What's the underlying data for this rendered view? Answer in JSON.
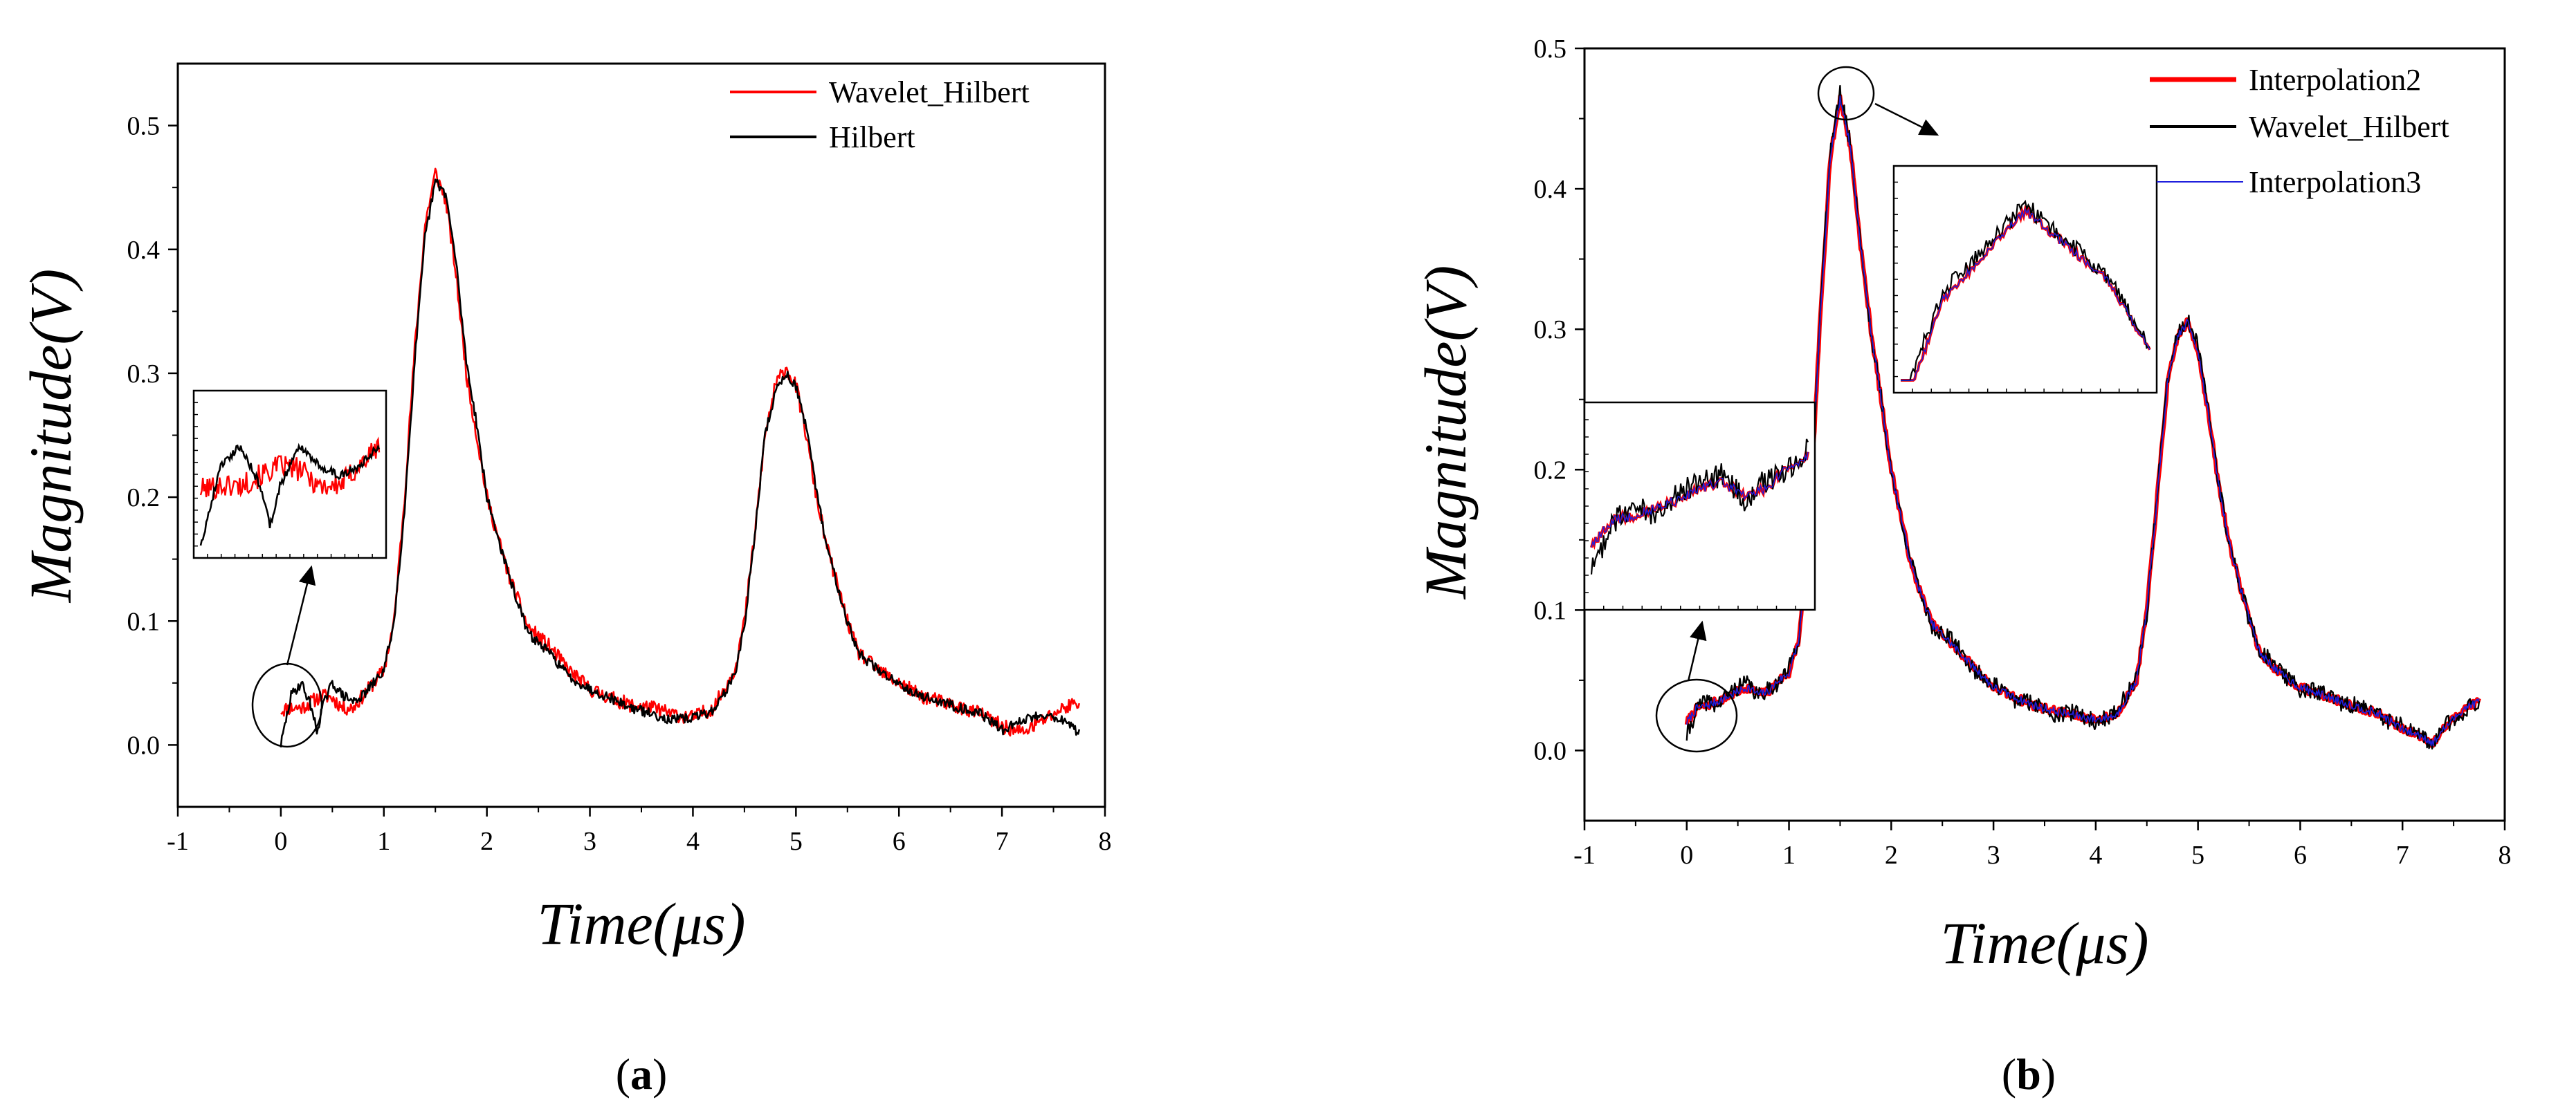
{
  "figure": {
    "panels": [
      {
        "label": "a",
        "xlabel": "Time(μs)",
        "ylabel": "Magnitude(V)",
        "xlim": [
          -1,
          8
        ],
        "ylim": [
          -0.05,
          0.55
        ],
        "xticks": [
          -1,
          0,
          1,
          2,
          3,
          4,
          5,
          6,
          7,
          8
        ],
        "yticks": [
          0.0,
          0.1,
          0.2,
          0.3,
          0.4,
          0.5
        ],
        "legend": [
          "Wavelet_Hilbert",
          "Hilbert"
        ]
      },
      {
        "label": "b",
        "xlabel": "Time(μs)",
        "ylabel": "Magnitude(V)",
        "xlim": [
          -1,
          8
        ],
        "ylim": [
          -0.05,
          0.5
        ],
        "xticks": [
          -1,
          0,
          1,
          2,
          3,
          4,
          5,
          6,
          7,
          8
        ],
        "yticks": [
          0.0,
          0.1,
          0.2,
          0.3,
          0.4,
          0.5
        ],
        "legend": [
          "Interpolation2",
          "Wavelet_Hilbert",
          "Interpolation3"
        ]
      }
    ]
  },
  "colors": {
    "red": "#ff0000",
    "black": "#000000",
    "blue": "#1f1fdd"
  },
  "chart_data": [
    {
      "type": "line",
      "panel": "a",
      "title": "",
      "xlabel": "Time(μs)",
      "ylabel": "Magnitude(V)",
      "xlim": [
        -1,
        8
      ],
      "ylim": [
        -0.05,
        0.55
      ],
      "grid": false,
      "legend_position": "top-right",
      "series": [
        {
          "name": "Wavelet_Hilbert",
          "color": "#ff0000",
          "x": [
            0.0,
            0.1,
            0.2,
            0.3,
            0.4,
            0.5,
            0.6,
            0.7,
            0.8,
            0.9,
            1.0,
            1.1,
            1.2,
            1.3,
            1.4,
            1.5,
            1.6,
            1.7,
            1.8,
            1.9,
            2.0,
            2.2,
            2.4,
            2.6,
            2.8,
            3.0,
            3.2,
            3.4,
            3.6,
            3.8,
            4.0,
            4.2,
            4.4,
            4.5,
            4.6,
            4.7,
            4.8,
            4.9,
            5.0,
            5.1,
            5.2,
            5.3,
            5.4,
            5.5,
            5.6,
            5.8,
            6.0,
            6.2,
            6.4,
            6.6,
            6.8,
            7.0,
            7.2,
            7.4,
            7.6,
            7.75
          ],
          "y": [
            0.028,
            0.03,
            0.03,
            0.035,
            0.04,
            0.038,
            0.03,
            0.03,
            0.04,
            0.05,
            0.06,
            0.1,
            0.2,
            0.32,
            0.42,
            0.462,
            0.44,
            0.38,
            0.3,
            0.25,
            0.2,
            0.14,
            0.095,
            0.08,
            0.06,
            0.045,
            0.038,
            0.032,
            0.03,
            0.025,
            0.022,
            0.03,
            0.06,
            0.1,
            0.17,
            0.25,
            0.29,
            0.305,
            0.29,
            0.25,
            0.2,
            0.16,
            0.13,
            0.1,
            0.075,
            0.06,
            0.05,
            0.04,
            0.035,
            0.03,
            0.025,
            0.015,
            0.01,
            0.02,
            0.03,
            0.035
          ]
        },
        {
          "name": "Hilbert",
          "color": "#000000",
          "x": [
            0.0,
            0.05,
            0.1,
            0.2,
            0.3,
            0.35,
            0.4,
            0.5,
            0.6,
            0.7,
            0.8,
            0.9,
            1.0,
            1.1,
            1.2,
            1.3,
            1.4,
            1.5,
            1.6,
            1.7,
            1.8,
            1.9,
            2.0,
            2.2,
            2.4,
            2.6,
            2.8,
            3.0,
            3.2,
            3.4,
            3.6,
            3.8,
            4.0,
            4.2,
            4.4,
            4.5,
            4.6,
            4.7,
            4.8,
            4.9,
            5.0,
            5.1,
            5.2,
            5.3,
            5.4,
            5.5,
            5.6,
            5.8,
            6.0,
            6.2,
            6.4,
            6.6,
            6.8,
            7.0,
            7.2,
            7.4,
            7.6,
            7.75
          ],
          "y": [
            0.0,
            0.02,
            0.04,
            0.05,
            0.03,
            0.01,
            0.03,
            0.05,
            0.04,
            0.035,
            0.04,
            0.05,
            0.06,
            0.1,
            0.19,
            0.31,
            0.41,
            0.455,
            0.445,
            0.39,
            0.31,
            0.26,
            0.2,
            0.14,
            0.09,
            0.075,
            0.055,
            0.045,
            0.038,
            0.03,
            0.025,
            0.02,
            0.022,
            0.028,
            0.055,
            0.095,
            0.17,
            0.25,
            0.285,
            0.3,
            0.29,
            0.255,
            0.205,
            0.16,
            0.13,
            0.1,
            0.075,
            0.06,
            0.05,
            0.04,
            0.035,
            0.03,
            0.025,
            0.012,
            0.02,
            0.025,
            0.02,
            0.01
          ]
        }
      ]
    },
    {
      "type": "line",
      "panel": "b",
      "title": "",
      "xlabel": "Time(μs)",
      "ylabel": "Magnitude(V)",
      "xlim": [
        -1,
        8
      ],
      "ylim": [
        -0.05,
        0.5
      ],
      "grid": false,
      "legend_position": "top-right",
      "series": [
        {
          "name": "Interpolation2",
          "color": "#ff0000",
          "x": [
            0.0,
            0.1,
            0.2,
            0.3,
            0.4,
            0.5,
            0.6,
            0.7,
            0.8,
            0.9,
            1.0,
            1.1,
            1.2,
            1.3,
            1.4,
            1.5,
            1.6,
            1.7,
            1.8,
            1.9,
            2.0,
            2.2,
            2.4,
            2.6,
            2.8,
            3.0,
            3.2,
            3.4,
            3.6,
            3.8,
            4.0,
            4.2,
            4.4,
            4.5,
            4.6,
            4.7,
            4.8,
            4.9,
            5.0,
            5.1,
            5.2,
            5.3,
            5.4,
            5.5,
            5.6,
            5.8,
            6.0,
            6.2,
            6.4,
            6.6,
            6.8,
            7.0,
            7.2,
            7.3,
            7.4,
            7.6,
            7.75
          ],
          "y": [
            0.02,
            0.03,
            0.032,
            0.035,
            0.038,
            0.042,
            0.045,
            0.04,
            0.042,
            0.05,
            0.055,
            0.08,
            0.16,
            0.3,
            0.42,
            0.465,
            0.43,
            0.36,
            0.3,
            0.25,
            0.2,
            0.13,
            0.09,
            0.075,
            0.06,
            0.045,
            0.038,
            0.032,
            0.028,
            0.025,
            0.022,
            0.025,
            0.05,
            0.1,
            0.18,
            0.26,
            0.295,
            0.305,
            0.285,
            0.24,
            0.19,
            0.15,
            0.12,
            0.095,
            0.07,
            0.055,
            0.045,
            0.04,
            0.035,
            0.03,
            0.025,
            0.015,
            0.01,
            0.005,
            0.015,
            0.03,
            0.035
          ]
        },
        {
          "name": "Wavelet_Hilbert",
          "color": "#000000",
          "x": [
            0.0,
            0.1,
            0.2,
            0.3,
            0.4,
            0.5,
            0.6,
            0.7,
            0.8,
            0.9,
            1.0,
            1.1,
            1.2,
            1.3,
            1.4,
            1.5,
            1.6,
            1.7,
            1.8,
            1.9,
            2.0,
            2.2,
            2.4,
            2.6,
            2.8,
            3.0,
            3.2,
            3.4,
            3.6,
            3.8,
            4.0,
            4.2,
            4.4,
            4.5,
            4.6,
            4.7,
            4.8,
            4.9,
            5.0,
            5.1,
            5.2,
            5.3,
            5.4,
            5.5,
            5.6,
            5.8,
            6.0,
            6.2,
            6.4,
            6.6,
            6.8,
            7.0,
            7.2,
            7.3,
            7.4,
            7.6,
            7.75
          ],
          "y": [
            0.01,
            0.03,
            0.035,
            0.032,
            0.04,
            0.045,
            0.048,
            0.038,
            0.045,
            0.048,
            0.058,
            0.082,
            0.165,
            0.305,
            0.425,
            0.468,
            0.432,
            0.362,
            0.298,
            0.252,
            0.198,
            0.132,
            0.088,
            0.078,
            0.058,
            0.047,
            0.036,
            0.034,
            0.026,
            0.027,
            0.02,
            0.027,
            0.052,
            0.098,
            0.182,
            0.262,
            0.297,
            0.306,
            0.287,
            0.242,
            0.192,
            0.148,
            0.122,
            0.093,
            0.072,
            0.057,
            0.043,
            0.042,
            0.033,
            0.032,
            0.023,
            0.017,
            0.008,
            0.004,
            0.017,
            0.028,
            0.036
          ]
        },
        {
          "name": "Interpolation3",
          "color": "#1f1fdd",
          "x": [
            0.0,
            0.1,
            0.2,
            0.3,
            0.4,
            0.5,
            0.6,
            0.7,
            0.8,
            0.9,
            1.0,
            1.1,
            1.2,
            1.3,
            1.4,
            1.5,
            1.6,
            1.7,
            1.8,
            1.9,
            2.0,
            2.2,
            2.4,
            2.6,
            2.8,
            3.0,
            3.2,
            3.4,
            3.6,
            3.8,
            4.0,
            4.2,
            4.4,
            4.5,
            4.6,
            4.7,
            4.8,
            4.9,
            5.0,
            5.1,
            5.2,
            5.3,
            5.4,
            5.5,
            5.6,
            5.8,
            6.0,
            6.2,
            6.4,
            6.6,
            6.8,
            7.0,
            7.2,
            7.3,
            7.4,
            7.6,
            7.75
          ],
          "y": [
            0.02,
            0.03,
            0.032,
            0.035,
            0.038,
            0.042,
            0.045,
            0.04,
            0.042,
            0.05,
            0.055,
            0.08,
            0.16,
            0.3,
            0.42,
            0.465,
            0.43,
            0.36,
            0.3,
            0.25,
            0.2,
            0.13,
            0.09,
            0.075,
            0.06,
            0.045,
            0.038,
            0.032,
            0.028,
            0.025,
            0.022,
            0.025,
            0.05,
            0.1,
            0.18,
            0.26,
            0.295,
            0.305,
            0.285,
            0.24,
            0.19,
            0.15,
            0.12,
            0.095,
            0.07,
            0.055,
            0.045,
            0.04,
            0.035,
            0.03,
            0.025,
            0.015,
            0.01,
            0.005,
            0.015,
            0.03,
            0.035
          ]
        }
      ]
    }
  ]
}
